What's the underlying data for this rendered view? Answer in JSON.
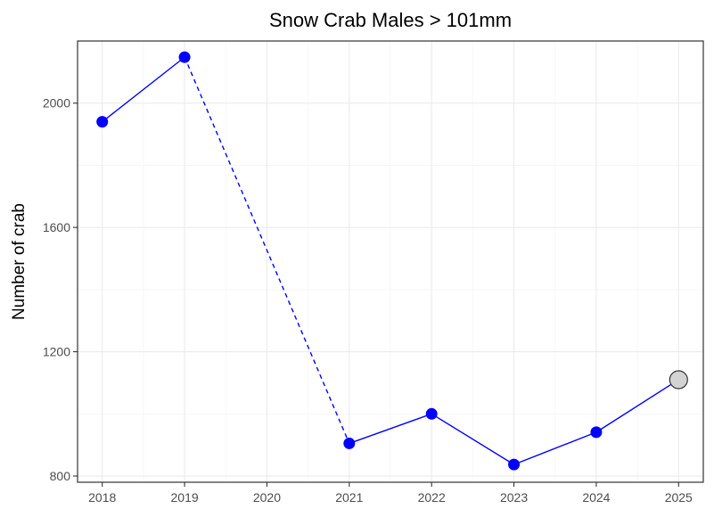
{
  "chart_data": {
    "type": "line",
    "title": "Snow Crab Males > 101mm",
    "xlabel": "",
    "ylabel": "Number of crab",
    "x": [
      2018,
      2019,
      2020,
      2021,
      2022,
      2023,
      2024,
      2025
    ],
    "xlim": [
      2017.7,
      2025.3
    ],
    "ylim": [
      780,
      2200
    ],
    "y_ticks": [
      800,
      1200,
      1600,
      2000
    ],
    "grid": true,
    "series": [
      {
        "points": [
          {
            "x": 2018,
            "y": 1940
          },
          {
            "x": 2019,
            "y": 2148
          },
          {
            "x": 2021,
            "y": 905
          },
          {
            "x": 2022,
            "y": 1000
          },
          {
            "x": 2023,
            "y": 837
          },
          {
            "x": 2024,
            "y": 941
          },
          {
            "x": 2025,
            "y": 1110
          }
        ],
        "gap": {
          "from": 2019,
          "to": 2021,
          "style": "dashed"
        },
        "highlight": {
          "x": 2025
        }
      }
    ],
    "colors": {
      "series": "#0000ff",
      "highlight_fill": "#d3d3d3",
      "highlight_stroke": "#333333"
    }
  }
}
